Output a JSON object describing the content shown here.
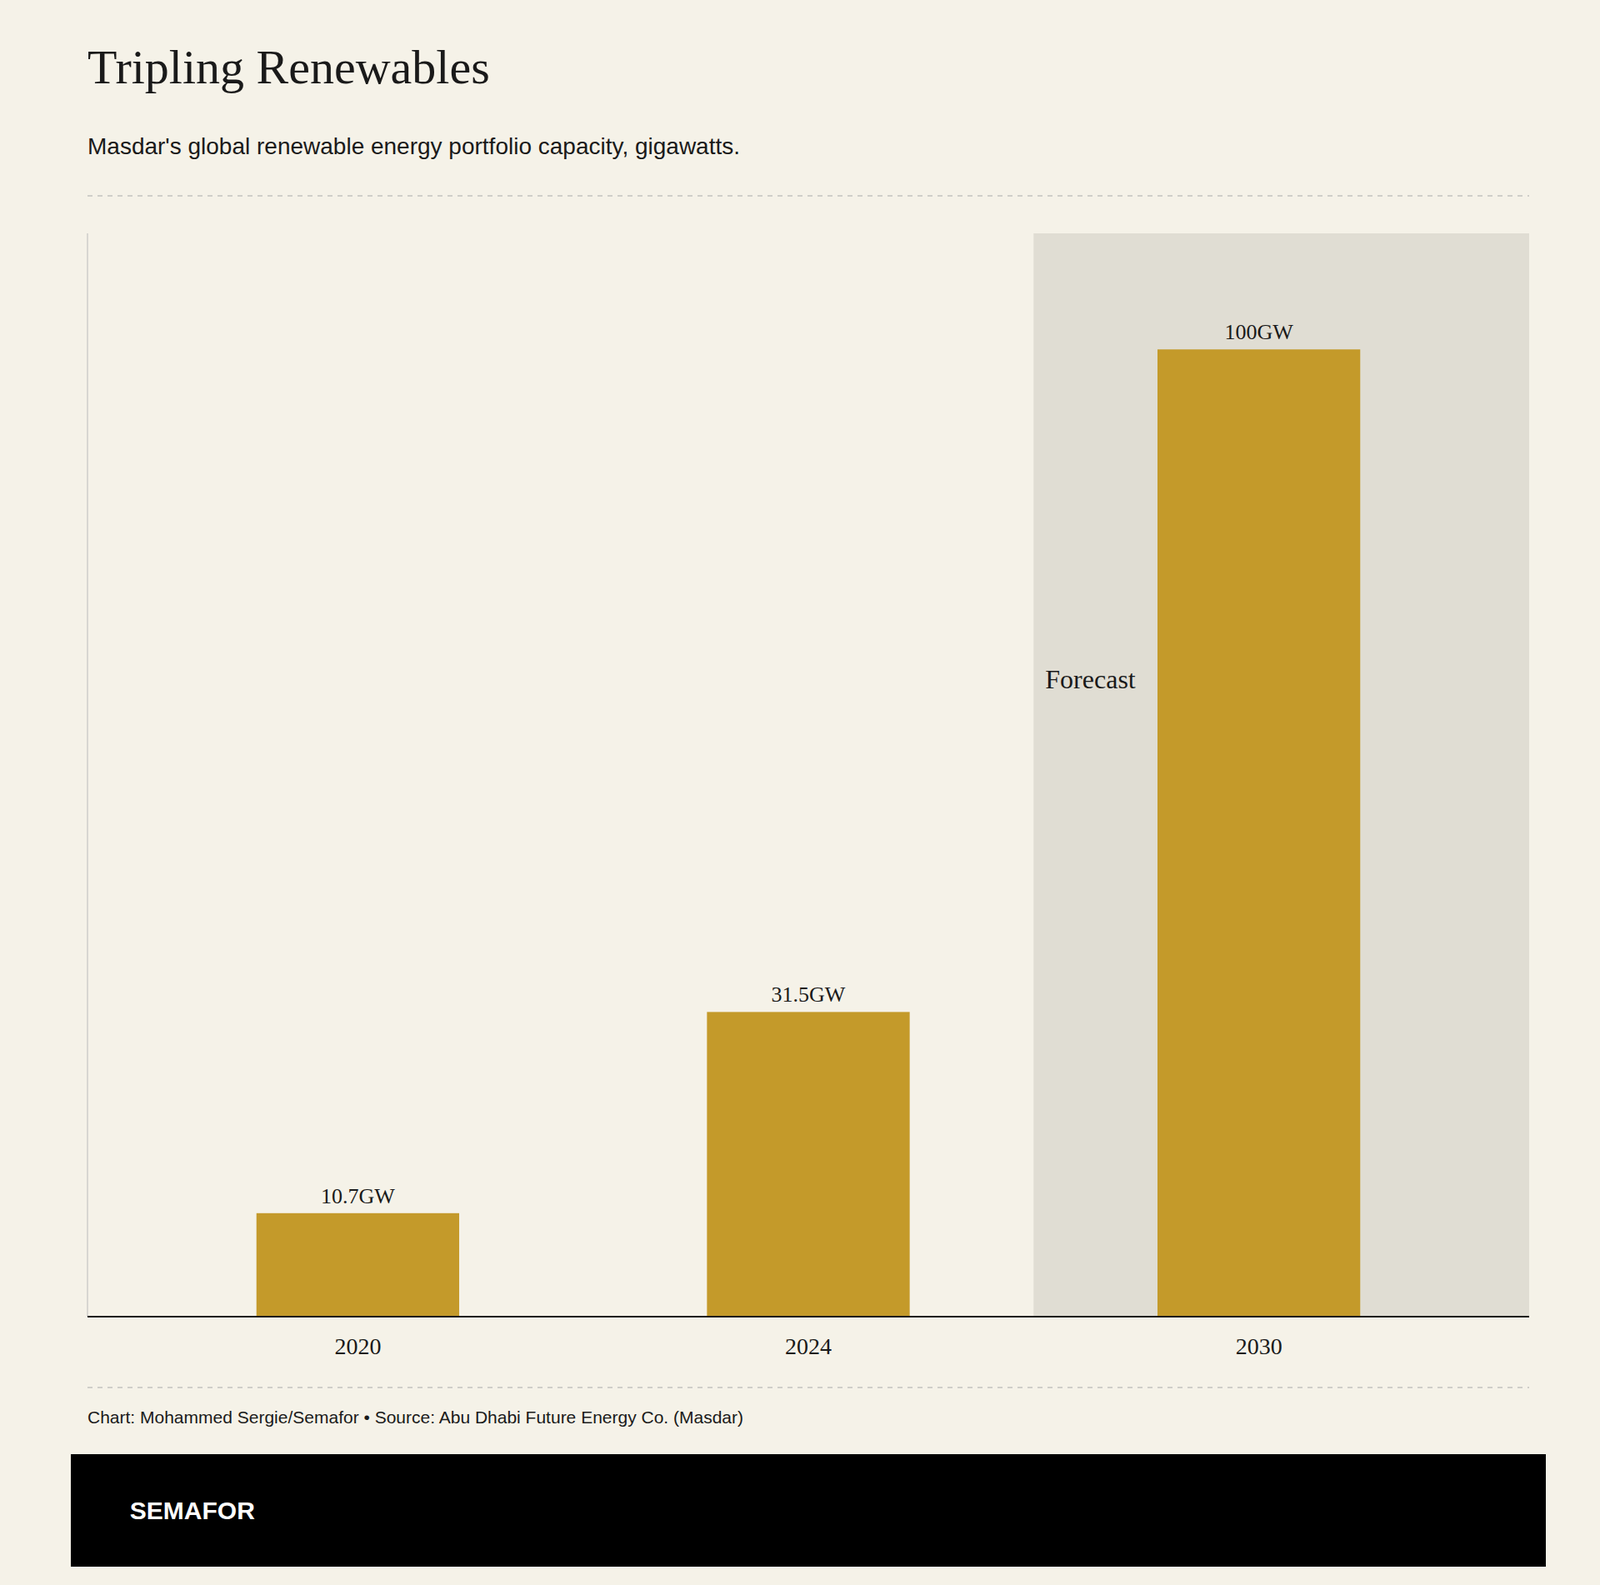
{
  "chart_data": {
    "type": "bar",
    "title": "Tripling Renewables",
    "subtitle": "Masdar's global renewable energy portfolio capacity, gigawatts.",
    "categories": [
      "2020",
      "2024",
      "2030"
    ],
    "values": [
      10.7,
      31.5,
      100.0
    ],
    "value_labels": [
      "10.7GW",
      "31.5GW",
      "100GW"
    ],
    "data_labels": true,
    "color": "#C49A2A",
    "ylim": [
      0,
      112
    ],
    "tick_labels": "x",
    "grid": false,
    "annotations": [
      {
        "text": "Forecast",
        "x": "2030"
      }
    ],
    "source": "Chart: Mohammed Sergie/Semafor • Source: Abu Dhabi Future Energy Co. (Masdar)",
    "brand": "SEMAFOR"
  }
}
